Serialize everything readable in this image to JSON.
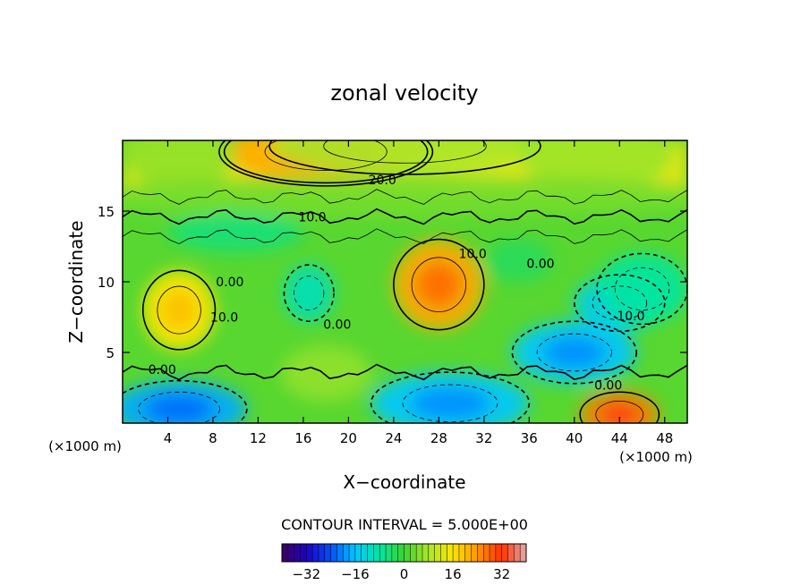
{
  "chart_data": {
    "type": "heatmap",
    "title": "zonal velocity",
    "xlabel": "X−coordinate",
    "ylabel": "Z−coordinate",
    "x_unit_left": "(×1000 m)",
    "x_unit_right": "(×1000 m)",
    "xlim": [
      0,
      50
    ],
    "ylim": [
      0,
      20
    ],
    "x_ticks": [
      4,
      8,
      12,
      16,
      20,
      24,
      28,
      32,
      36,
      40,
      44,
      48
    ],
    "x_tick_labels": [
      "4",
      "8",
      "12",
      "16",
      "20",
      "24",
      "28",
      "32",
      "36",
      "40",
      "44",
      "48"
    ],
    "y_ticks": [
      5,
      10,
      15
    ],
    "y_tick_labels": [
      "5",
      "10",
      "15"
    ],
    "contour_interval_label": "CONTOUR INTERVAL = 5.000E+00",
    "colorbar": {
      "min": -40,
      "max": 40,
      "ticks": [
        -32,
        -16,
        0,
        16,
        32
      ],
      "tick_labels": [
        "−32",
        "−16",
        "0",
        "16",
        "32"
      ]
    },
    "contour_labels": [
      {
        "text": "20.0",
        "x": 23.0,
        "y": 17.2
      },
      {
        "text": "10.0",
        "x": 16.8,
        "y": 14.6
      },
      {
        "text": "0.00",
        "x": 9.5,
        "y": 10.0
      },
      {
        "text": "10.0",
        "x": 9.0,
        "y": 7.5
      },
      {
        "text": "0.00",
        "x": 3.5,
        "y": 3.8
      },
      {
        "text": "0.00",
        "x": 19.0,
        "y": 7.0
      },
      {
        "text": "10.0",
        "x": 31.0,
        "y": 12.0
      },
      {
        "text": "0.00",
        "x": 37.0,
        "y": 11.3
      },
      {
        "text": "10.0",
        "x": 45.0,
        "y": 7.6
      },
      {
        "text": "0.00",
        "x": 43.0,
        "y": 2.7
      }
    ],
    "field_blobs": [
      {
        "x": 18,
        "y": 19.2,
        "rx": 9,
        "ry": 2.2,
        "v": 22
      },
      {
        "x": 25,
        "y": 19.6,
        "rx": 12,
        "ry": 2.0,
        "v": 8
      },
      {
        "x": 5,
        "y": 19.0,
        "rx": 5,
        "ry": 2.5,
        "v": 6
      },
      {
        "x": 42,
        "y": 19.0,
        "rx": 7,
        "ry": 2.5,
        "v": 7
      },
      {
        "x": 25,
        "y": 16.0,
        "rx": 30,
        "ry": 1.5,
        "v": 4
      },
      {
        "x": 5,
        "y": 8.0,
        "rx": 3.2,
        "ry": 2.8,
        "v": 16
      },
      {
        "x": 28,
        "y": 9.8,
        "rx": 4.0,
        "ry": 3.2,
        "v": 22
      },
      {
        "x": 40,
        "y": 5.0,
        "rx": 5.5,
        "ry": 2.2,
        "v": -16
      },
      {
        "x": 44,
        "y": 8.5,
        "rx": 4,
        "ry": 2.0,
        "v": -14
      },
      {
        "x": 46,
        "y": 9.5,
        "rx": 4,
        "ry": 2.5,
        "v": -8
      },
      {
        "x": 16.5,
        "y": 9.2,
        "rx": 2.2,
        "ry": 2.0,
        "v": -10
      },
      {
        "x": 5,
        "y": 1.0,
        "rx": 6,
        "ry": 2.0,
        "v": -18
      },
      {
        "x": 29,
        "y": 1.4,
        "rx": 7,
        "ry": 2.2,
        "v": -16
      },
      {
        "x": 44,
        "y": 0.6,
        "rx": 3.5,
        "ry": 1.6,
        "v": 26
      },
      {
        "x": 18,
        "y": 3.5,
        "rx": 4,
        "ry": 2.0,
        "v": 6
      },
      {
        "x": 10,
        "y": 13.5,
        "rx": 6,
        "ry": 1.4,
        "v": -5
      },
      {
        "x": 35,
        "y": 11.5,
        "rx": 3,
        "ry": 1.5,
        "v": -3
      }
    ]
  }
}
